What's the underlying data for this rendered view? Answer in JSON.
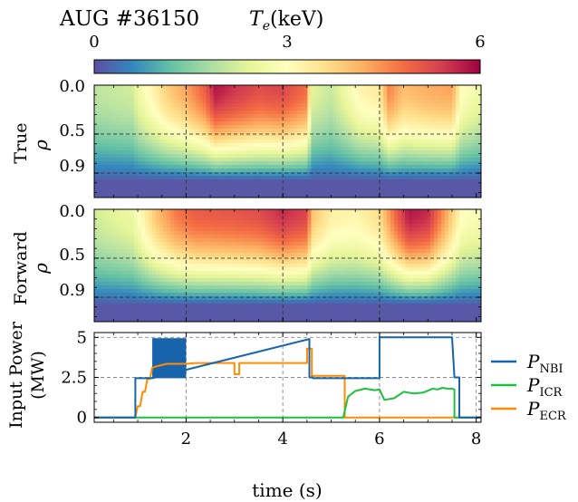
{
  "header": {
    "shot_label": "AUG #36150",
    "colorbar_label": "T_e(keV)"
  },
  "colorbar": {
    "ticks": [
      "0",
      "3",
      "6"
    ],
    "vmin": 0,
    "vmax": 6
  },
  "chart_data": [
    {
      "type": "heatmap",
      "name": "True",
      "ylabel": "True ρ",
      "yticks": [
        "0.0",
        "0.5",
        "0.9"
      ],
      "x_range_s": [
        0.1,
        8.1
      ],
      "y_range_rho": [
        0.0,
        1.15
      ],
      "color_range_keV": [
        0,
        6
      ],
      "gridlines_x": [
        2,
        4,
        6
      ],
      "gridlines_y": [
        0.5,
        0.9
      ],
      "core_te_keV": {
        "t": [
          0.1,
          0.9,
          1.0,
          1.3,
          1.6,
          2.0,
          2.4,
          2.6,
          3.0,
          3.5,
          4.0,
          4.5,
          4.6,
          5.0,
          5.3,
          5.6,
          6.0,
          6.2,
          6.5,
          7.0,
          7.5,
          7.7,
          8.1
        ],
        "te": [
          2.0,
          2.2,
          2.6,
          3.2,
          3.8,
          4.3,
          5.0,
          5.8,
          5.5,
          5.2,
          5.3,
          4.8,
          2.4,
          2.1,
          2.6,
          3.2,
          3.4,
          4.6,
          4.0,
          4.2,
          4.3,
          3.0,
          2.6
        ]
      }
    },
    {
      "type": "heatmap",
      "name": "Forward",
      "ylabel": "Forward ρ",
      "yticks": [
        "0.0",
        "0.5",
        "0.9"
      ],
      "x_range_s": [
        0.1,
        8.1
      ],
      "y_range_rho": [
        0.0,
        1.15
      ],
      "color_range_keV": [
        0,
        6
      ],
      "gridlines_x": [
        2,
        4,
        6
      ],
      "gridlines_y": [
        0.5,
        0.9
      ],
      "core_te_keV": {
        "t": [
          0.1,
          0.9,
          1.1,
          1.4,
          1.8,
          2.2,
          3.0,
          3.5,
          4.0,
          4.5,
          4.6,
          5.0,
          5.5,
          6.0,
          6.3,
          6.6,
          7.0,
          7.5,
          7.7,
          8.1
        ],
        "te": [
          2.2,
          2.6,
          3.2,
          4.0,
          4.7,
          5.0,
          5.1,
          5.2,
          5.6,
          5.3,
          4.0,
          3.3,
          3.2,
          3.6,
          4.8,
          5.8,
          5.6,
          3.8,
          3.0,
          2.8
        ]
      }
    },
    {
      "type": "line",
      "name": "Input Power",
      "xlabel": "time (s)",
      "ylabel": "Input Power (MW)",
      "xlim": [
        0.1,
        8.1
      ],
      "ylim": [
        -0.3,
        5.3
      ],
      "xticks": [
        "2",
        "4",
        "6",
        "8"
      ],
      "yticks": [
        "0",
        "2.5",
        "5"
      ],
      "grid": true,
      "legend_position": "right",
      "series": [
        {
          "name": "P_NBI",
          "color": "#1764ab",
          "x": [
            0.1,
            0.95,
            0.95,
            1.3,
            4.55,
            4.55,
            4.62,
            4.62,
            6.0,
            6.0,
            7.5,
            7.55,
            7.6,
            7.65,
            7.65,
            8.1
          ],
          "y": [
            0,
            0,
            2.45,
            2.45,
            4.9,
            2.5,
            2.5,
            2.45,
            2.45,
            5.0,
            5.0,
            2.5,
            2.5,
            2.5,
            0,
            0
          ]
        },
        {
          "name": "P_ICR",
          "color": "#1fbf3f",
          "x": [
            0.1,
            5.25,
            5.35,
            5.5,
            5.7,
            5.9,
            6.0,
            6.1,
            6.3,
            6.5,
            6.7,
            6.9,
            7.1,
            7.2,
            7.3,
            7.4,
            7.5,
            7.55,
            7.55,
            8.1
          ],
          "y": [
            0,
            0,
            1.3,
            1.65,
            1.8,
            1.7,
            1.75,
            1.1,
            1.2,
            1.6,
            1.5,
            1.55,
            1.8,
            1.75,
            1.85,
            1.8,
            1.8,
            1.75,
            0,
            0
          ]
        },
        {
          "name": "P_ECR",
          "color": "#ff8c00",
          "x": [
            0.1,
            0.95,
            1.0,
            1.05,
            1.1,
            1.15,
            1.2,
            1.25,
            1.3,
            1.4,
            1.6,
            2.0,
            2.2,
            3.0,
            3.0,
            3.1,
            3.1,
            4.5,
            4.5,
            4.6,
            4.6,
            5.2,
            5.28,
            5.28,
            8.1
          ],
          "y": [
            0,
            0,
            0.7,
            0.7,
            1.6,
            1.6,
            2.4,
            2.4,
            3.1,
            3.2,
            3.35,
            3.35,
            3.4,
            3.4,
            2.7,
            2.7,
            3.4,
            3.4,
            4.3,
            4.3,
            2.6,
            2.6,
            2.6,
            0,
            0
          ]
        }
      ],
      "noisy_band": {
        "series": "P_NBI",
        "x": [
          1.3,
          2.0
        ],
        "y": [
          2.45,
          4.95
        ]
      }
    }
  ],
  "legend": [
    "P_NBI",
    "P_ICR",
    "P_ECR"
  ]
}
